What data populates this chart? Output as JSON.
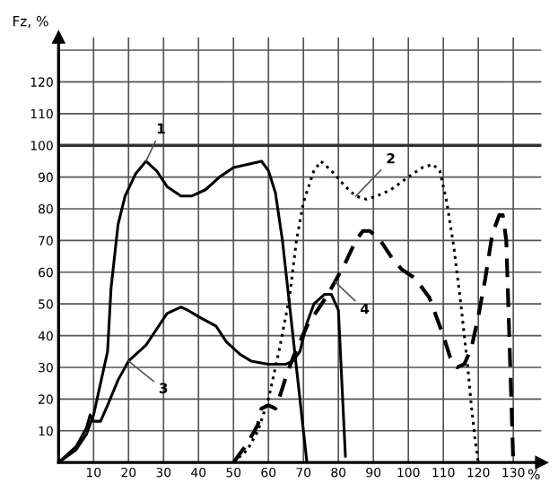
{
  "chart_data": {
    "type": "line",
    "ylabel": "Fz, %",
    "xlabel": "%",
    "xlim": [
      0,
      138
    ],
    "ylim": [
      0,
      134
    ],
    "xticks": [
      10,
      20,
      30,
      40,
      50,
      60,
      70,
      80,
      90,
      100,
      110,
      120,
      130
    ],
    "yticks": [
      10,
      20,
      30,
      40,
      50,
      60,
      70,
      80,
      90,
      100,
      110,
      120,
      {
        "value": 130,
        "label": null
      }
    ],
    "grid": true,
    "annotations": [
      {
        "text": "1",
        "x": 25,
        "y": 95
      },
      {
        "text": "2",
        "x": 85,
        "y": 84
      },
      {
        "text": "3",
        "x": 20,
        "y": 32
      },
      {
        "text": "4",
        "x": 79,
        "y": 57
      }
    ],
    "ref_lines": [
      {
        "axis": "y",
        "value": 100,
        "color": "#333333"
      }
    ],
    "series": [
      {
        "color": "#000000",
        "line_style": "solid",
        "x": [
          0,
          5,
          8,
          10,
          12,
          14,
          15,
          17,
          19,
          22,
          25,
          28,
          31,
          35,
          38,
          42,
          46,
          50,
          54,
          58,
          60,
          62,
          64,
          66,
          68,
          70,
          71
        ],
        "values": [
          0,
          4,
          9,
          15,
          25,
          35,
          55,
          75,
          84,
          91,
          95,
          92,
          87,
          84,
          84,
          86,
          90,
          93,
          94,
          95,
          92,
          85,
          70,
          50,
          30,
          10,
          0
        ]
      },
      {
        "color": "#000000",
        "line_style": "dotted",
        "x": [
          50,
          54,
          57,
          60,
          63,
          66,
          68,
          70,
          73,
          75,
          78,
          82,
          85,
          88,
          91,
          95,
          100,
          104,
          107,
          109,
          111,
          113,
          115,
          117,
          118,
          119,
          120
        ],
        "values": [
          0,
          4,
          10,
          20,
          35,
          52,
          70,
          82,
          92,
          95,
          92,
          87,
          84,
          83,
          84,
          86,
          90,
          93,
          94,
          92,
          82,
          68,
          50,
          30,
          18,
          8,
          0
        ]
      },
      {
        "color": "#000000",
        "line_style": "solid",
        "x": [
          0,
          5,
          8,
          9,
          10,
          12,
          14,
          17,
          20,
          25,
          28,
          31,
          35,
          37,
          40,
          45,
          48,
          52,
          55,
          60,
          65,
          67,
          69,
          71,
          73,
          76,
          78,
          80,
          81,
          82
        ],
        "values": [
          0,
          5,
          11,
          15,
          13,
          13,
          18,
          26,
          32,
          37,
          42,
          47,
          49,
          48,
          46,
          43,
          38,
          34,
          32,
          31,
          31,
          32,
          35,
          44,
          50,
          53,
          53,
          48,
          25,
          2
        ]
      },
      {
        "color": "#000000",
        "line_style": "dashed",
        "x": [
          50,
          54,
          57,
          58,
          60,
          62,
          63,
          65,
          67,
          69,
          71,
          74,
          77,
          79,
          82,
          85,
          87,
          89,
          92,
          95,
          98,
          102,
          106,
          110,
          112,
          114,
          116,
          118,
          120,
          122,
          124,
          126,
          127,
          128,
          129,
          130
        ],
        "values": [
          0,
          6,
          12,
          17,
          18,
          17,
          20,
          27,
          33,
          38,
          43,
          48,
          53,
          57,
          63,
          70,
          73,
          73,
          70,
          65,
          61,
          58,
          52,
          40,
          33,
          30,
          31,
          36,
          46,
          58,
          72,
          78,
          78,
          70,
          35,
          0
        ]
      }
    ]
  }
}
